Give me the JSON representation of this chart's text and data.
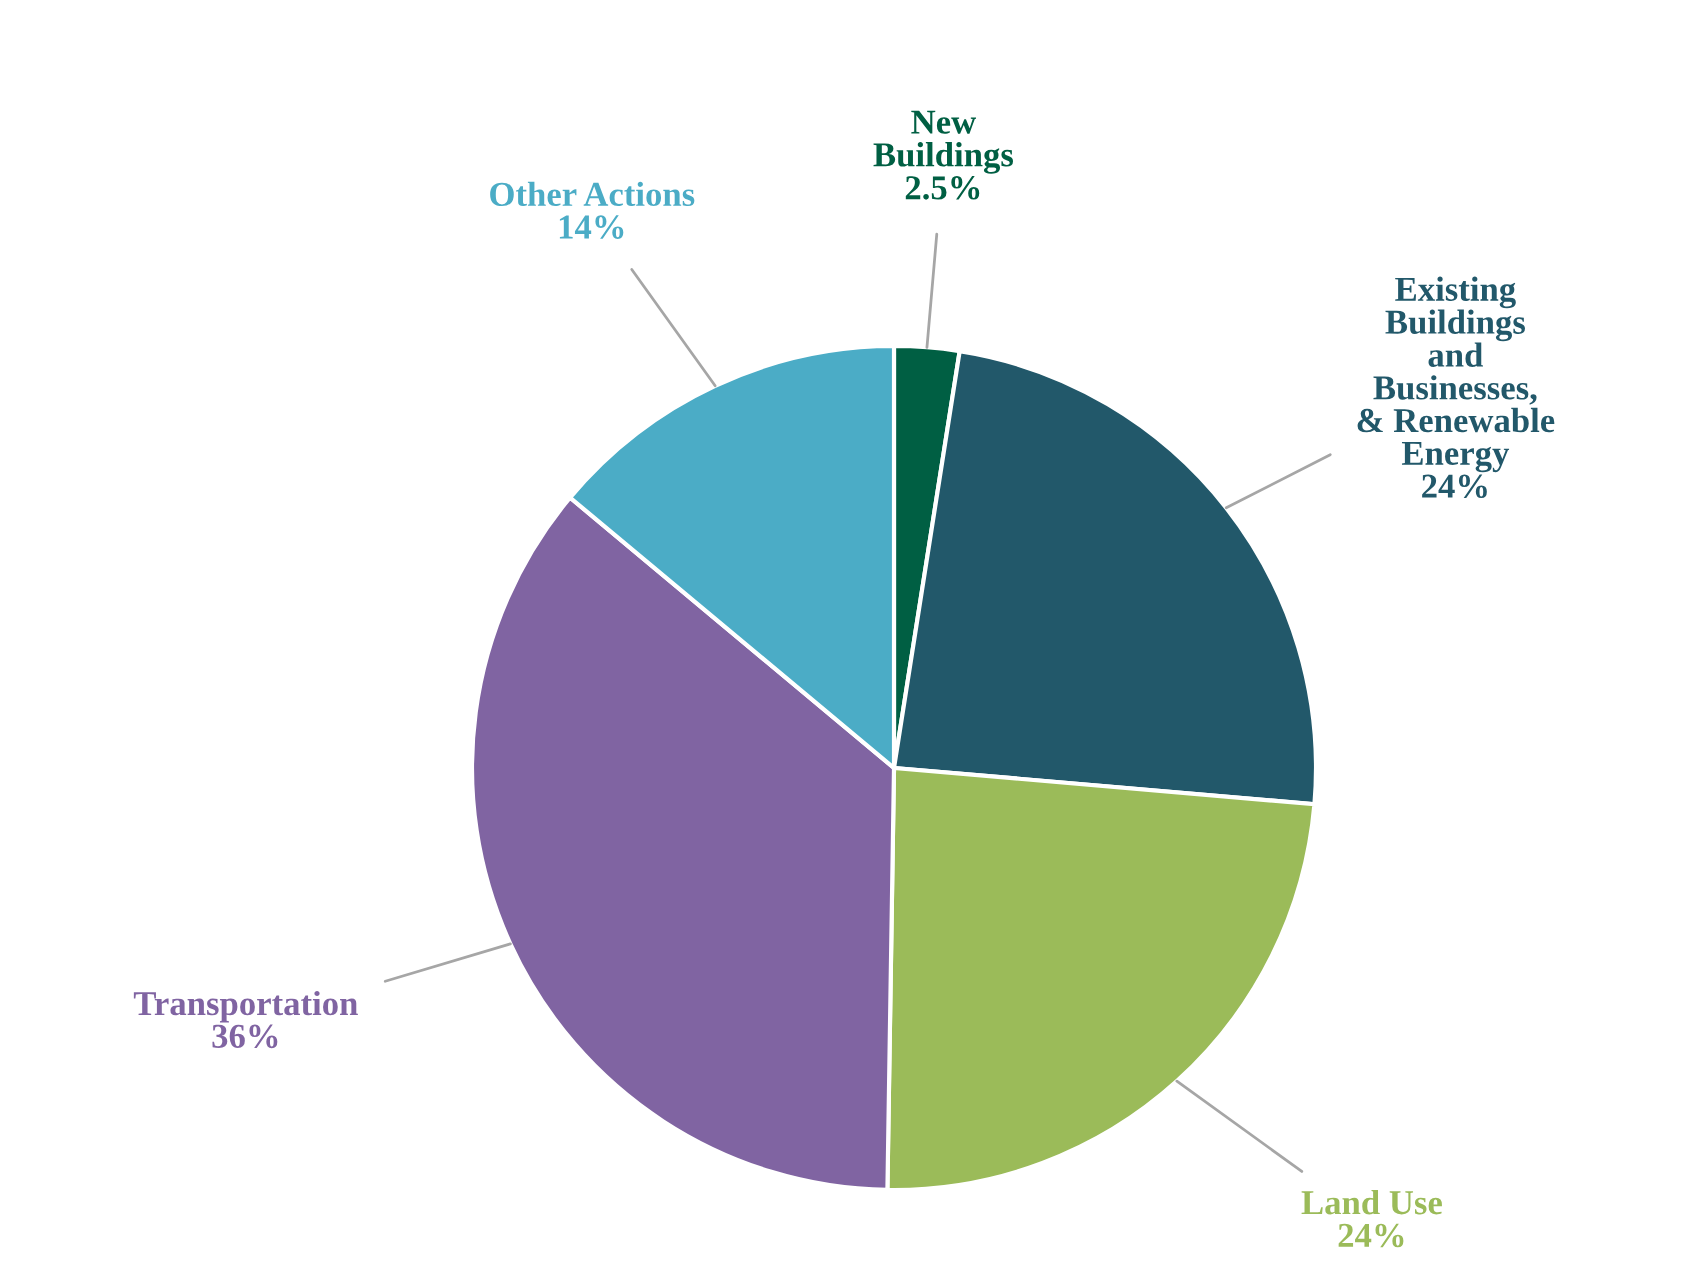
{
  "chart_data": {
    "type": "pie",
    "categories": [
      "New\nBuildings",
      "Existing\nBuildings\nand\nBusinesses,\n& Renewable\nEnergy",
      "Land Use",
      "Transportation",
      "Other Actions"
    ],
    "values": [
      2.5,
      24,
      24,
      36,
      14
    ],
    "value_labels": [
      "2.5%",
      "24%",
      "24%",
      "36%",
      "14%"
    ],
    "colors": [
      "#005f43",
      "#22586a",
      "#9bbb59",
      "#8064a2",
      "#4bacc6"
    ],
    "legend": false
  }
}
